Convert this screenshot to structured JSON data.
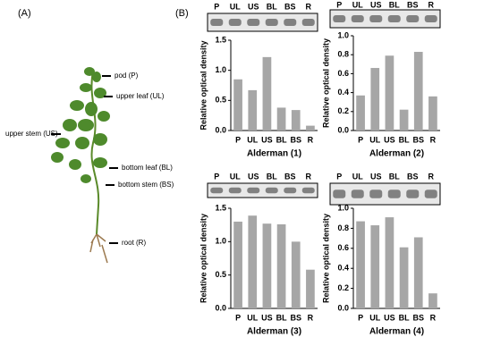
{
  "panel_labels": [
    "(A)",
    "(B)"
  ],
  "plant_labels": [
    "pod (P)",
    "upper leaf (UL)",
    "upper stem (US)",
    "bottom leaf (BL)",
    "bottom stem (BS)",
    "root (R)"
  ],
  "chart_data": [
    {
      "type": "bar",
      "title": "Alderman (1)",
      "y_label": "Relative optical density",
      "categories": [
        "P",
        "UL",
        "US",
        "BL",
        "BS",
        "R"
      ],
      "values": [
        0.85,
        0.67,
        1.22,
        0.38,
        0.34,
        0.08
      ],
      "color": "#a6a6a6",
      "ylim": [
        0,
        1.5
      ],
      "yticks": [
        {
          "value": 0,
          "label": "0.0"
        },
        {
          "value": 0.5,
          "label": "0.5"
        },
        {
          "value": 1,
          "label": "1.0"
        },
        {
          "value": 1.5,
          "label": "1.5"
        }
      ]
    },
    {
      "type": "bar",
      "title": "Alderman (2)",
      "y_label": "Relative optical density",
      "categories": [
        "P",
        "UL",
        "US",
        "BL",
        "BS",
        "R"
      ],
      "values": [
        0.37,
        0.66,
        0.79,
        0.22,
        0.83,
        0.36
      ],
      "color": "#a6a6a6",
      "ylim": [
        0,
        1
      ],
      "yticks": [
        {
          "value": 0,
          "label": "0.0"
        },
        {
          "value": 0.2,
          "label": "0.2"
        },
        {
          "value": 0.4,
          "label": "0.4"
        },
        {
          "value": 0.6,
          "label": "0.6"
        },
        {
          "value": 0.8,
          "label": "0.8"
        },
        {
          "value": 1,
          "label": "1.0"
        }
      ]
    },
    {
      "type": "bar",
      "title": "Alderman (3)",
      "y_label": "Relative optical density",
      "categories": [
        "P",
        "UL",
        "US",
        "BL",
        "BS",
        "R"
      ],
      "values": [
        1.3,
        1.39,
        1.27,
        1.26,
        1.0,
        0.58
      ],
      "color": "#a6a6a6",
      "ylim": [
        0,
        1.5
      ],
      "yticks": [
        {
          "value": 0,
          "label": "0.0"
        },
        {
          "value": 0.5,
          "label": "0.5"
        },
        {
          "value": 1,
          "label": "1.0"
        },
        {
          "value": 1.5,
          "label": "1.5"
        }
      ]
    },
    {
      "type": "bar",
      "title": "Alderman (4)",
      "y_label": "Relative optical density",
      "categories": [
        "P",
        "UL",
        "US",
        "BL",
        "BS",
        "R"
      ],
      "values": [
        0.87,
        0.83,
        0.91,
        0.61,
        0.71,
        0.15
      ],
      "color": "#a6a6a6",
      "ylim": [
        0,
        1
      ],
      "yticks": [
        {
          "value": 0,
          "label": "0.0"
        },
        {
          "value": 0.2,
          "label": "0.2"
        },
        {
          "value": 0.4,
          "label": "0.4"
        },
        {
          "value": 0.6,
          "label": "0.6"
        },
        {
          "value": 0.8,
          "label": "0.8"
        },
        {
          "value": 1,
          "label": "1.0"
        }
      ]
    }
  ]
}
